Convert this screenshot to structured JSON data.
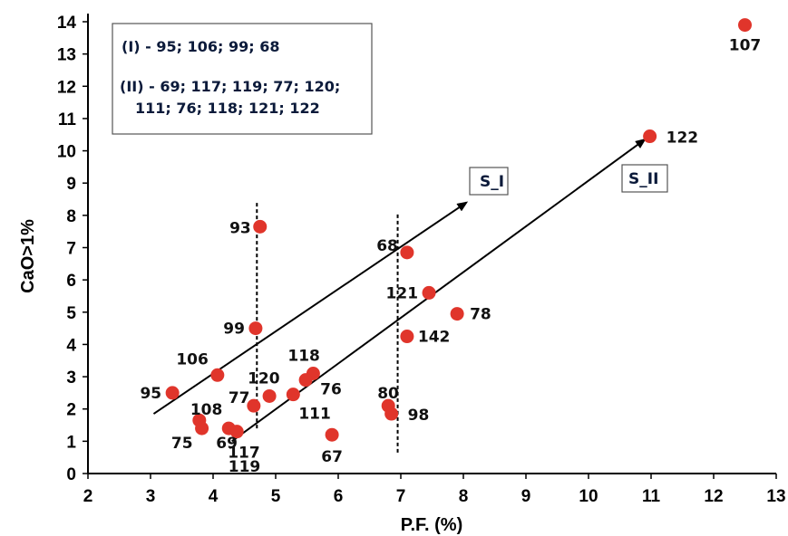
{
  "chart_data": {
    "type": "scatter",
    "title": "",
    "xlabel": "P.F. (%)",
    "ylabel": "CaO>1%",
    "xlim": [
      2,
      13
    ],
    "ylim": [
      0,
      14
    ],
    "xticks": [
      "2",
      "3",
      "4",
      "5",
      "6",
      "7",
      "8",
      "9",
      "10",
      "11",
      "12",
      "13"
    ],
    "yticks": [
      "0",
      "1",
      "2",
      "3",
      "4",
      "5",
      "6",
      "7",
      "8",
      "9",
      "10",
      "11",
      "12",
      "13",
      "14"
    ],
    "grid": false,
    "marker_color": "#e0352b",
    "points": [
      {
        "label": "107",
        "x": 12.5,
        "y": 13.9
      },
      {
        "label": "122",
        "x": 10.98,
        "y": 10.45
      },
      {
        "label": "93",
        "x": 4.75,
        "y": 7.65
      },
      {
        "label": "68",
        "x": 7.1,
        "y": 6.85
      },
      {
        "label": "121",
        "x": 7.45,
        "y": 5.6
      },
      {
        "label": "78",
        "x": 7.9,
        "y": 4.95
      },
      {
        "label": "99",
        "x": 4.68,
        "y": 4.5
      },
      {
        "label": "142",
        "x": 7.1,
        "y": 4.25
      },
      {
        "label": "106",
        "x": 4.07,
        "y": 3.05
      },
      {
        "label": "118",
        "x": 5.6,
        "y": 3.1
      },
      {
        "label": "76",
        "x": 5.48,
        "y": 2.9
      },
      {
        "label": "95",
        "x": 3.35,
        "y": 2.5
      },
      {
        "label": "120",
        "x": 4.9,
        "y": 2.4
      },
      {
        "label": "111",
        "x": 5.28,
        "y": 2.45
      },
      {
        "label": "80",
        "x": 6.8,
        "y": 2.1
      },
      {
        "label": "98",
        "x": 6.85,
        "y": 1.85
      },
      {
        "label": "77",
        "x": 4.65,
        "y": 2.1
      },
      {
        "label": "108",
        "x": 3.78,
        "y": 1.65
      },
      {
        "label": "75",
        "x": 3.82,
        "y": 1.4
      },
      {
        "label": "69",
        "x": 4.25,
        "y": 1.4
      },
      {
        "label": "117",
        "x": 4.38,
        "y": 1.3
      },
      {
        "label": "67",
        "x": 5.9,
        "y": 1.2
      }
    ],
    "extra_labels": [
      {
        "text": "119",
        "x": 4.5,
        "y": 0.05
      }
    ],
    "trend_lines": [
      {
        "name": "S_I",
        "from": [
          3.05,
          1.85
        ],
        "to": [
          8.05,
          8.4
        ]
      },
      {
        "name": "S_II",
        "from": [
          4.3,
          1.0
        ],
        "to": [
          10.9,
          10.35
        ]
      }
    ],
    "vertical_guides": [
      {
        "x": 4.7,
        "y_from": 1.4,
        "y_to": 8.4
      },
      {
        "x": 6.95,
        "y_from": 0.65,
        "y_to": 8.1
      }
    ],
    "legend_lines": [
      "(I) - 95; 106; 99; 68",
      "(II) - 69; 117; 119; 77; 120;",
      "111; 76; 118; 121; 122"
    ],
    "legend_placement": "top-left"
  }
}
